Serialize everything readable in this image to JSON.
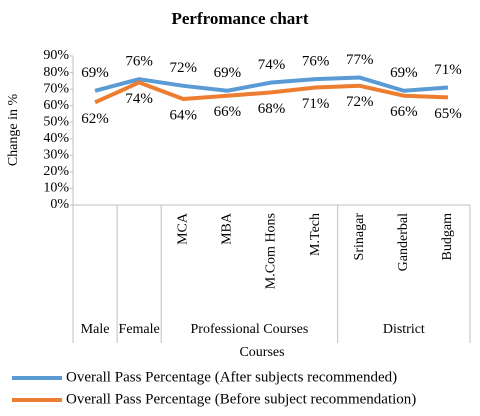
{
  "chart_data": {
    "type": "line",
    "title": "Perfromance chart",
    "x_label": "Courses",
    "y_label": "Change in %",
    "categories": [
      null,
      null,
      "MCA",
      "MBA",
      "M.Com Hons",
      "M.Tech",
      "Srinagar",
      "Ganderbal",
      "Budgam"
    ],
    "groups": [
      {
        "name": "Male",
        "size": 1
      },
      {
        "name": "Female",
        "size": 1
      },
      {
        "name": "Professional Courses",
        "size": 4
      },
      {
        "name": "District",
        "size": 3
      }
    ],
    "series": [
      {
        "name": "Overall Pass Percentage (After subjects recommended)",
        "color": "#5b9bd5",
        "values": [
          69,
          76,
          72,
          69,
          74,
          76,
          77,
          69,
          71
        ],
        "value_labels": [
          "69%",
          "76%",
          "72%",
          "69%",
          "74%",
          "76%",
          "77%",
          "69%",
          "71%"
        ]
      },
      {
        "name": "Overall Pass Percentage (Before subject recommendation)",
        "color": "#ed7d31",
        "values": [
          62,
          74,
          64,
          66,
          68,
          71,
          72,
          66,
          65
        ],
        "value_labels": [
          "62%",
          "74%",
          "64%",
          "66%",
          "68%",
          "71%",
          "72%",
          "66%",
          "65%"
        ]
      }
    ],
    "ylim": [
      0,
      90
    ],
    "yticks": [
      {
        "value": 0,
        "label": "0%"
      },
      {
        "value": 10,
        "label": "10%"
      },
      {
        "value": 20,
        "label": "20%"
      },
      {
        "value": 30,
        "label": "30%"
      },
      {
        "value": 40,
        "label": "40%"
      },
      {
        "value": 50,
        "label": "50%"
      },
      {
        "value": 60,
        "label": "60%"
      },
      {
        "value": 70,
        "label": "70%"
      },
      {
        "value": 80,
        "label": "80%"
      },
      {
        "value": 90,
        "label": "90%"
      }
    ],
    "grid": false,
    "legend": "bottom"
  }
}
